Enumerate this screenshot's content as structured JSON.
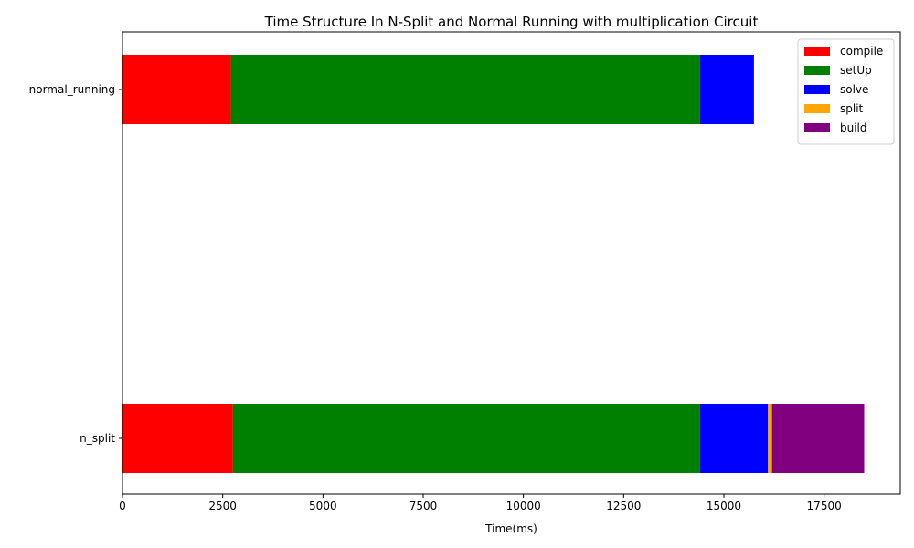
{
  "chart_data": {
    "type": "bar",
    "orientation": "horizontal",
    "stacked": true,
    "title": "Time Structure In N-Split and Normal Running with multiplication Circuit",
    "xlabel": "Time(ms)",
    "ylabel": "",
    "xlim": [
      0,
      19400
    ],
    "x_ticks": [
      0,
      2500,
      5000,
      7500,
      10000,
      12500,
      15000,
      17500
    ],
    "x_tick_labels": [
      "0",
      "2500",
      "5000",
      "7500",
      "10000",
      "12500",
      "15000",
      "17500"
    ],
    "categories": [
      "n_split",
      "normal_running"
    ],
    "series": [
      {
        "name": "compile",
        "color": "#ff0000",
        "values": [
          2750,
          2700
        ]
      },
      {
        "name": "setUp",
        "color": "#008000",
        "values": [
          11650,
          11700
        ]
      },
      {
        "name": "solve",
        "color": "#0000ff",
        "values": [
          1700,
          1350
        ]
      },
      {
        "name": "split",
        "color": "#ffa500",
        "values": [
          100,
          0
        ]
      },
      {
        "name": "build",
        "color": "#800080",
        "values": [
          2300,
          0
        ]
      }
    ],
    "legend": "top-right",
    "grid": false
  }
}
